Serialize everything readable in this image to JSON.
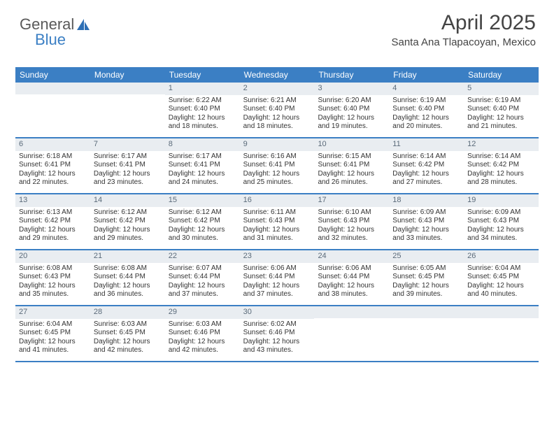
{
  "brand": {
    "part1": "General",
    "part2": "Blue"
  },
  "title": "April 2025",
  "location": "Santa Ana Tlapacoyan, Mexico",
  "colors": {
    "header_blue": "#3b7fc4",
    "daybar_bg": "#e9edf1",
    "text": "#333333",
    "logo_gray": "#5a5a5a"
  },
  "typography": {
    "title_fontsize": 30,
    "location_fontsize": 15,
    "dow_fontsize": 12,
    "cell_fontsize": 10
  },
  "dow": [
    "Sunday",
    "Monday",
    "Tuesday",
    "Wednesday",
    "Thursday",
    "Friday",
    "Saturday"
  ],
  "weeks": [
    [
      {
        "day": "",
        "sunrise": "",
        "sunset": "",
        "daylight": ""
      },
      {
        "day": "",
        "sunrise": "",
        "sunset": "",
        "daylight": ""
      },
      {
        "day": "1",
        "sunrise": "Sunrise: 6:22 AM",
        "sunset": "Sunset: 6:40 PM",
        "daylight": "Daylight: 12 hours and 18 minutes."
      },
      {
        "day": "2",
        "sunrise": "Sunrise: 6:21 AM",
        "sunset": "Sunset: 6:40 PM",
        "daylight": "Daylight: 12 hours and 18 minutes."
      },
      {
        "day": "3",
        "sunrise": "Sunrise: 6:20 AM",
        "sunset": "Sunset: 6:40 PM",
        "daylight": "Daylight: 12 hours and 19 minutes."
      },
      {
        "day": "4",
        "sunrise": "Sunrise: 6:19 AM",
        "sunset": "Sunset: 6:40 PM",
        "daylight": "Daylight: 12 hours and 20 minutes."
      },
      {
        "day": "5",
        "sunrise": "Sunrise: 6:19 AM",
        "sunset": "Sunset: 6:40 PM",
        "daylight": "Daylight: 12 hours and 21 minutes."
      }
    ],
    [
      {
        "day": "6",
        "sunrise": "Sunrise: 6:18 AM",
        "sunset": "Sunset: 6:41 PM",
        "daylight": "Daylight: 12 hours and 22 minutes."
      },
      {
        "day": "7",
        "sunrise": "Sunrise: 6:17 AM",
        "sunset": "Sunset: 6:41 PM",
        "daylight": "Daylight: 12 hours and 23 minutes."
      },
      {
        "day": "8",
        "sunrise": "Sunrise: 6:17 AM",
        "sunset": "Sunset: 6:41 PM",
        "daylight": "Daylight: 12 hours and 24 minutes."
      },
      {
        "day": "9",
        "sunrise": "Sunrise: 6:16 AM",
        "sunset": "Sunset: 6:41 PM",
        "daylight": "Daylight: 12 hours and 25 minutes."
      },
      {
        "day": "10",
        "sunrise": "Sunrise: 6:15 AM",
        "sunset": "Sunset: 6:41 PM",
        "daylight": "Daylight: 12 hours and 26 minutes."
      },
      {
        "day": "11",
        "sunrise": "Sunrise: 6:14 AM",
        "sunset": "Sunset: 6:42 PM",
        "daylight": "Daylight: 12 hours and 27 minutes."
      },
      {
        "day": "12",
        "sunrise": "Sunrise: 6:14 AM",
        "sunset": "Sunset: 6:42 PM",
        "daylight": "Daylight: 12 hours and 28 minutes."
      }
    ],
    [
      {
        "day": "13",
        "sunrise": "Sunrise: 6:13 AM",
        "sunset": "Sunset: 6:42 PM",
        "daylight": "Daylight: 12 hours and 29 minutes."
      },
      {
        "day": "14",
        "sunrise": "Sunrise: 6:12 AM",
        "sunset": "Sunset: 6:42 PM",
        "daylight": "Daylight: 12 hours and 29 minutes."
      },
      {
        "day": "15",
        "sunrise": "Sunrise: 6:12 AM",
        "sunset": "Sunset: 6:42 PM",
        "daylight": "Daylight: 12 hours and 30 minutes."
      },
      {
        "day": "16",
        "sunrise": "Sunrise: 6:11 AM",
        "sunset": "Sunset: 6:43 PM",
        "daylight": "Daylight: 12 hours and 31 minutes."
      },
      {
        "day": "17",
        "sunrise": "Sunrise: 6:10 AM",
        "sunset": "Sunset: 6:43 PM",
        "daylight": "Daylight: 12 hours and 32 minutes."
      },
      {
        "day": "18",
        "sunrise": "Sunrise: 6:09 AM",
        "sunset": "Sunset: 6:43 PM",
        "daylight": "Daylight: 12 hours and 33 minutes."
      },
      {
        "day": "19",
        "sunrise": "Sunrise: 6:09 AM",
        "sunset": "Sunset: 6:43 PM",
        "daylight": "Daylight: 12 hours and 34 minutes."
      }
    ],
    [
      {
        "day": "20",
        "sunrise": "Sunrise: 6:08 AM",
        "sunset": "Sunset: 6:43 PM",
        "daylight": "Daylight: 12 hours and 35 minutes."
      },
      {
        "day": "21",
        "sunrise": "Sunrise: 6:08 AM",
        "sunset": "Sunset: 6:44 PM",
        "daylight": "Daylight: 12 hours and 36 minutes."
      },
      {
        "day": "22",
        "sunrise": "Sunrise: 6:07 AM",
        "sunset": "Sunset: 6:44 PM",
        "daylight": "Daylight: 12 hours and 37 minutes."
      },
      {
        "day": "23",
        "sunrise": "Sunrise: 6:06 AM",
        "sunset": "Sunset: 6:44 PM",
        "daylight": "Daylight: 12 hours and 37 minutes."
      },
      {
        "day": "24",
        "sunrise": "Sunrise: 6:06 AM",
        "sunset": "Sunset: 6:44 PM",
        "daylight": "Daylight: 12 hours and 38 minutes."
      },
      {
        "day": "25",
        "sunrise": "Sunrise: 6:05 AM",
        "sunset": "Sunset: 6:45 PM",
        "daylight": "Daylight: 12 hours and 39 minutes."
      },
      {
        "day": "26",
        "sunrise": "Sunrise: 6:04 AM",
        "sunset": "Sunset: 6:45 PM",
        "daylight": "Daylight: 12 hours and 40 minutes."
      }
    ],
    [
      {
        "day": "27",
        "sunrise": "Sunrise: 6:04 AM",
        "sunset": "Sunset: 6:45 PM",
        "daylight": "Daylight: 12 hours and 41 minutes."
      },
      {
        "day": "28",
        "sunrise": "Sunrise: 6:03 AM",
        "sunset": "Sunset: 6:45 PM",
        "daylight": "Daylight: 12 hours and 42 minutes."
      },
      {
        "day": "29",
        "sunrise": "Sunrise: 6:03 AM",
        "sunset": "Sunset: 6:46 PM",
        "daylight": "Daylight: 12 hours and 42 minutes."
      },
      {
        "day": "30",
        "sunrise": "Sunrise: 6:02 AM",
        "sunset": "Sunset: 6:46 PM",
        "daylight": "Daylight: 12 hours and 43 minutes."
      },
      {
        "day": "",
        "sunrise": "",
        "sunset": "",
        "daylight": ""
      },
      {
        "day": "",
        "sunrise": "",
        "sunset": "",
        "daylight": ""
      },
      {
        "day": "",
        "sunrise": "",
        "sunset": "",
        "daylight": ""
      }
    ]
  ]
}
